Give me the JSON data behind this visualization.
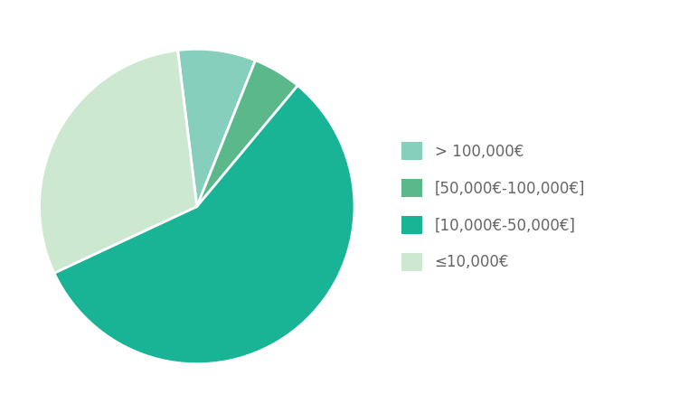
{
  "labels": [
    "> 100,000€",
    "[50,000€-100,000€]",
    "[10,000€-50,000€]",
    "≤10,000€"
  ],
  "values": [
    8,
    5,
    57,
    30
  ],
  "colors": [
    "#86cfbc",
    "#5ab88a",
    "#19b496",
    "#cce8d0"
  ],
  "startangle": 97,
  "counterclock": false,
  "legend_labels": [
    "> 100,000€",
    "[50,000€-100,000€]",
    "[10,000€-50,000€]",
    "≤10,000€"
  ],
  "legend_colors": [
    "#86cfbc",
    "#5ab88a",
    "#19b496",
    "#cce8d0"
  ],
  "background_color": "#ffffff",
  "wedge_linewidth": 2.0,
  "wedge_edgecolor": "#ffffff",
  "text_color": "#666666",
  "legend_fontsize": 12
}
